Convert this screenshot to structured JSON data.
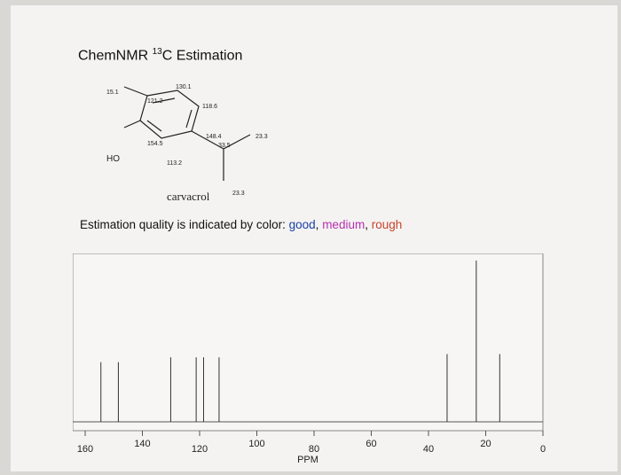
{
  "title": {
    "prefix": "ChemNMR ",
    "sup": "13",
    "suffix": "C Estimation"
  },
  "molecule": {
    "name": "carvacrol",
    "substituent_label": "HO",
    "shift_labels": [
      "15.1",
      "130.1",
      "121.2",
      "118.6",
      "148.4",
      "33.5",
      "23.3",
      "154.5",
      "113.2",
      "23.3"
    ]
  },
  "quality_note": {
    "prefix": "Estimation quality is indicated by color: ",
    "good": "good",
    "sep1": ", ",
    "medium": "medium",
    "sep2": ", ",
    "rough": "rough"
  },
  "chart_data": {
    "type": "bar",
    "xlabel": "PPM",
    "xlim": [
      160,
      0
    ],
    "x_ticks": [
      "160",
      "140",
      "120",
      "100",
      "80",
      "60",
      "40",
      "20",
      "0"
    ],
    "peaks": [
      {
        "ppm": 154.5,
        "intensity": 0.37
      },
      {
        "ppm": 148.4,
        "intensity": 0.37
      },
      {
        "ppm": 130.1,
        "intensity": 0.4
      },
      {
        "ppm": 121.2,
        "intensity": 0.4
      },
      {
        "ppm": 118.6,
        "intensity": 0.4
      },
      {
        "ppm": 113.2,
        "intensity": 0.4
      },
      {
        "ppm": 33.5,
        "intensity": 0.42
      },
      {
        "ppm": 23.3,
        "intensity": 1.0
      },
      {
        "ppm": 15.1,
        "intensity": 0.42
      }
    ],
    "grid": false
  }
}
